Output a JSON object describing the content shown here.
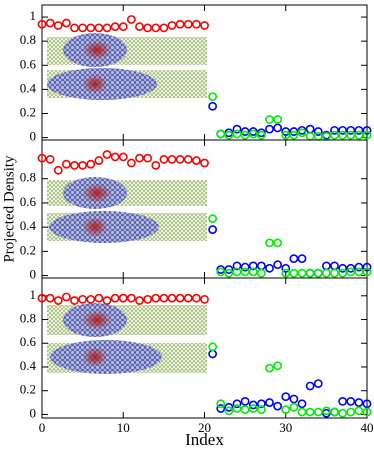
{
  "chart_data": [
    {
      "type": "scatter",
      "xlim": [
        0,
        40
      ],
      "ylim": [
        -0.02,
        1.1
      ],
      "yticks": [
        0,
        0.2,
        0.4,
        0.6,
        0.8,
        1
      ],
      "series": [
        {
          "color": "#ff0000",
          "x": [
            0,
            1,
            2,
            3,
            4,
            5,
            6,
            7,
            8,
            9,
            10,
            11,
            12,
            13,
            14,
            15,
            16,
            17,
            18,
            19,
            20
          ],
          "values": [
            0.94,
            0.95,
            0.93,
            0.95,
            0.91,
            0.91,
            0.91,
            0.91,
            0.91,
            0.92,
            0.92,
            0.98,
            0.92,
            0.91,
            0.91,
            0.91,
            0.93,
            0.94,
            0.94,
            0.94,
            0.93
          ]
        },
        {
          "color": "#0000ff",
          "x": [
            21,
            22,
            23,
            24,
            25,
            26,
            27,
            28,
            29,
            30,
            31,
            32,
            33,
            34,
            35,
            36,
            37,
            38,
            39,
            40
          ],
          "values": [
            0.26,
            0.03,
            0.04,
            0.07,
            0.05,
            0.05,
            0.04,
            0.07,
            0.08,
            0.05,
            0.05,
            0.06,
            0.07,
            0.05,
            0.02,
            0.06,
            0.06,
            0.06,
            0.06,
            0.06
          ]
        },
        {
          "color": "#00ee00",
          "x": [
            21,
            22,
            23,
            24,
            25,
            26,
            27,
            28,
            29,
            30,
            31,
            32,
            33,
            34,
            35,
            36,
            37,
            38,
            39,
            40
          ],
          "values": [
            0.34,
            0.03,
            0.02,
            0.03,
            0.02,
            0.03,
            0.02,
            0.15,
            0.15,
            0.02,
            0.02,
            0.04,
            0.01,
            0.01,
            0.01,
            0.02,
            0.02,
            0.02,
            0.02,
            0.02
          ]
        }
      ]
    },
    {
      "type": "scatter",
      "xlim": [
        0,
        40
      ],
      "ylim": [
        -0.02,
        1.12
      ],
      "yticks": [
        0,
        0.2,
        0.4,
        0.6,
        0.8
      ],
      "ylabel": "Projected Density",
      "series": [
        {
          "color": "#ff0000",
          "x": [
            0,
            1,
            2,
            3,
            4,
            5,
            6,
            7,
            8,
            9,
            10,
            11,
            12,
            13,
            14,
            15,
            16,
            17,
            18,
            19,
            20
          ],
          "values": [
            0.97,
            0.96,
            0.87,
            0.92,
            0.91,
            0.91,
            0.92,
            0.95,
            1.0,
            0.98,
            0.98,
            0.93,
            0.97,
            0.97,
            0.91,
            0.96,
            0.96,
            0.96,
            0.96,
            0.95,
            0.93
          ]
        },
        {
          "color": "#0000ff",
          "x": [
            21,
            22,
            23,
            24,
            25,
            26,
            27,
            28,
            29,
            30,
            31,
            32,
            33,
            34,
            35,
            36,
            37,
            38,
            39,
            40
          ],
          "values": [
            0.38,
            0.05,
            0.05,
            0.08,
            0.07,
            0.08,
            0.08,
            0.06,
            0.09,
            0.06,
            0.14,
            0.14,
            0.02,
            0.02,
            0.08,
            0.08,
            0.06,
            0.06,
            0.07,
            0.07
          ]
        },
        {
          "color": "#00ee00",
          "x": [
            21,
            22,
            23,
            24,
            25,
            26,
            27,
            28,
            29,
            30,
            31,
            32,
            33,
            34,
            35,
            36,
            37,
            38,
            39,
            40
          ],
          "values": [
            0.47,
            0.03,
            0.02,
            0.03,
            0.03,
            0.03,
            0.02,
            0.27,
            0.27,
            0.02,
            0.02,
            0.02,
            0.02,
            0.02,
            0.02,
            0.02,
            0.02,
            0.03,
            0.03,
            0.03
          ]
        }
      ]
    },
    {
      "type": "scatter",
      "xlim": [
        0,
        40
      ],
      "ylim": [
        -0.03,
        1.15
      ],
      "yticks": [
        0,
        0.2,
        0.4,
        0.6,
        0.8,
        1
      ],
      "xticks": [
        0,
        10,
        20,
        30,
        40
      ],
      "xlabel": "Index",
      "series": [
        {
          "color": "#ff0000",
          "x": [
            0,
            1,
            2,
            3,
            4,
            5,
            6,
            7,
            8,
            9,
            10,
            11,
            12,
            13,
            14,
            15,
            16,
            17,
            18,
            19,
            20
          ],
          "values": [
            0.98,
            0.98,
            0.96,
            0.99,
            0.96,
            0.97,
            0.97,
            0.98,
            0.96,
            0.98,
            0.98,
            0.98,
            0.96,
            0.97,
            0.98,
            0.98,
            0.98,
            0.98,
            0.98,
            0.98,
            0.97
          ]
        },
        {
          "color": "#0000ff",
          "x": [
            21,
            22,
            23,
            24,
            25,
            26,
            27,
            28,
            29,
            30,
            31,
            32,
            33,
            34,
            35,
            36,
            37,
            38,
            39,
            40
          ],
          "values": [
            0.51,
            0.05,
            0.06,
            0.09,
            0.11,
            0.08,
            0.09,
            0.1,
            0.07,
            0.15,
            0.13,
            0.09,
            0.24,
            0.26,
            0.01,
            0.02,
            0.11,
            0.11,
            0.1,
            0.09
          ]
        },
        {
          "color": "#00ee00",
          "x": [
            21,
            22,
            23,
            24,
            25,
            26,
            27,
            28,
            29,
            30,
            31,
            32,
            33,
            34,
            35,
            36,
            37,
            38,
            39,
            40
          ],
          "values": [
            0.57,
            0.09,
            0.03,
            0.05,
            0.04,
            0.05,
            0.04,
            0.39,
            0.41,
            0.04,
            0.06,
            0.02,
            0.02,
            0.02,
            0.03,
            0.02,
            0.01,
            0.02,
            0.03,
            0.02
          ]
        }
      ]
    }
  ]
}
